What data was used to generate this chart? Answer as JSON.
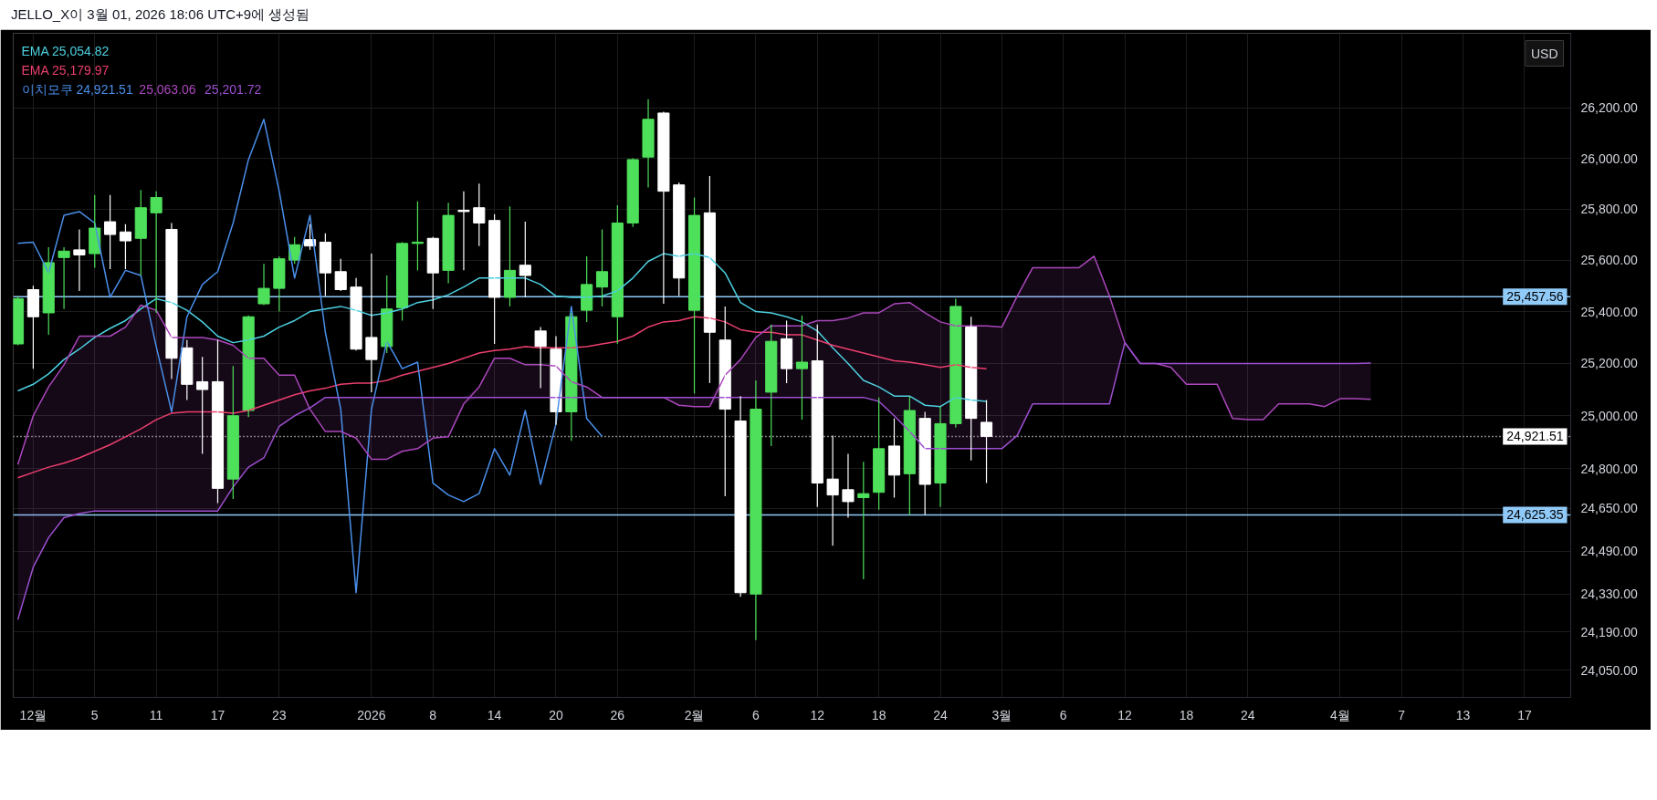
{
  "chart_data": {
    "type": "candlestick",
    "title": "JELLO_X이 3월 01, 2026 18:06 UTC+9에 생성됨",
    "ylabel": "USD",
    "log": true,
    "grid": true,
    "legend": "top left",
    "categories": [
      null,
      "12월",
      null,
      null,
      null,
      "5",
      null,
      null,
      null,
      "11",
      null,
      null,
      null,
      "17",
      null,
      null,
      null,
      "23",
      null,
      null,
      null,
      null,
      null,
      "2026",
      null,
      null,
      null,
      "8",
      null,
      null,
      null,
      "14",
      null,
      null,
      null,
      "20",
      null,
      null,
      null,
      "26",
      null,
      null,
      null,
      null,
      "2월",
      null,
      null,
      null,
      "6",
      null,
      null,
      null,
      "12",
      null,
      null,
      null,
      "18",
      null,
      null,
      null,
      "24",
      null,
      null,
      null,
      "3월",
      null,
      null,
      null,
      "6",
      null,
      null,
      null,
      "12",
      null,
      null,
      null,
      "18",
      null,
      null,
      null,
      "24",
      null,
      null,
      null,
      null,
      null,
      "4월",
      null,
      null,
      null,
      "7",
      null,
      null,
      null,
      "13",
      null,
      null,
      null,
      "17",
      null,
      null
    ],
    "ylim": [
      23950,
      26500
    ],
    "yticks": [
      {
        "value": 24050,
        "label": "24,050.00"
      },
      {
        "value": 24190,
        "label": "24,190.00"
      },
      {
        "value": 24330,
        "label": "24,330.00"
      },
      {
        "value": 24490,
        "label": "24,490.00"
      },
      {
        "value": 24650,
        "label": "24,650.00"
      },
      {
        "value": 24800,
        "label": "24,800.00"
      },
      {
        "value": 25000,
        "label": "25,000.00"
      },
      {
        "value": 25200,
        "label": "25,200.00"
      },
      {
        "value": 25400,
        "label": "25,400.00"
      },
      {
        "value": 25600,
        "label": "25,600.00"
      },
      {
        "value": 25800,
        "label": "25,800.00"
      },
      {
        "value": 26000,
        "label": "26,000.00"
      },
      {
        "value": 26200,
        "label": "26,200.00"
      }
    ],
    "ohlc": [
      [
        25275,
        25460,
        25270,
        25450
      ],
      [
        25485,
        25500,
        25180,
        25380
      ],
      [
        25395,
        25650,
        25310,
        25590
      ],
      [
        25610,
        25650,
        25410,
        25635
      ],
      [
        25640,
        25720,
        25480,
        25620
      ],
      [
        25625,
        25855,
        25570,
        25725
      ],
      [
        25750,
        25855,
        25565,
        25700
      ],
      [
        25710,
        25740,
        25565,
        25675
      ],
      [
        25685,
        25875,
        25540,
        25805
      ],
      [
        25785,
        25870,
        25395,
        25845
      ],
      [
        25720,
        25745,
        25140,
        25220
      ],
      [
        25260,
        25290,
        25060,
        25120
      ],
      [
        25130,
        25225,
        24855,
        25100
      ],
      [
        25130,
        25290,
        24670,
        24725
      ],
      [
        24760,
        25190,
        24685,
        25000
      ],
      [
        25020,
        25385,
        24995,
        25380
      ],
      [
        25430,
        25585,
        25425,
        25490
      ],
      [
        25490,
        25615,
        25400,
        25605
      ],
      [
        25600,
        25690,
        25585,
        25660
      ],
      [
        25680,
        25740,
        25640,
        25655
      ],
      [
        25670,
        25705,
        25460,
        25550
      ],
      [
        25555,
        25605,
        25480,
        25485
      ],
      [
        25495,
        25530,
        25250,
        25255
      ],
      [
        25300,
        25625,
        25090,
        25215
      ],
      [
        25265,
        25540,
        25240,
        25410
      ],
      [
        25415,
        25670,
        25365,
        25665
      ],
      [
        25665,
        25830,
        25560,
        25670
      ],
      [
        25685,
        25690,
        25410,
        25550
      ],
      [
        25560,
        25825,
        25510,
        25775
      ],
      [
        25795,
        25870,
        25560,
        25790
      ],
      [
        25805,
        25900,
        25655,
        25745
      ],
      [
        25755,
        25780,
        25275,
        25455
      ],
      [
        25455,
        25810,
        25420,
        25560
      ],
      [
        25580,
        25750,
        25455,
        25540
      ],
      [
        25325,
        25340,
        25105,
        25265
      ],
      [
        25255,
        25305,
        24965,
        25015
      ],
      [
        25015,
        25395,
        24905,
        25380
      ],
      [
        25405,
        25615,
        25360,
        25505
      ],
      [
        25495,
        25720,
        25420,
        25555
      ],
      [
        25380,
        25815,
        25275,
        25745
      ],
      [
        25745,
        26000,
        25730,
        25995
      ],
      [
        26005,
        26235,
        25885,
        26155
      ],
      [
        26180,
        26185,
        25430,
        25870
      ],
      [
        25895,
        25905,
        25460,
        25530
      ],
      [
        25405,
        25845,
        25085,
        25775
      ],
      [
        25785,
        25930,
        25125,
        25320
      ],
      [
        25290,
        25420,
        24695,
        25025
      ],
      [
        24980,
        25075,
        24320,
        24335
      ],
      [
        24330,
        25135,
        24160,
        25025
      ],
      [
        25090,
        25350,
        24885,
        25285
      ],
      [
        25295,
        25365,
        25125,
        25180
      ],
      [
        25180,
        25385,
        24985,
        25205
      ],
      [
        25210,
        25350,
        24655,
        24745
      ],
      [
        24760,
        24925,
        24510,
        24700
      ],
      [
        24720,
        24855,
        24615,
        24675
      ],
      [
        24690,
        24825,
        24385,
        24705
      ],
      [
        24710,
        25070,
        24645,
        24875
      ],
      [
        24885,
        24990,
        24690,
        24775
      ],
      [
        24780,
        25075,
        24625,
        25020
      ],
      [
        24990,
        25015,
        24625,
        24740
      ],
      [
        24745,
        25035,
        24655,
        24970
      ],
      [
        24970,
        25450,
        24955,
        25420
      ],
      [
        25340,
        25380,
        24830,
        24990
      ],
      [
        24975,
        25060,
        24745,
        24921.51
      ],
      null,
      null,
      null,
      null,
      null,
      null,
      null,
      null,
      null,
      null,
      null,
      null,
      null,
      null,
      null,
      null,
      null,
      null,
      null,
      null,
      null,
      null,
      null,
      null,
      null,
      null,
      null,
      null,
      null,
      null,
      null,
      null,
      null,
      null,
      null,
      null,
      null
    ],
    "colors": [
      "#4ee05a",
      "#ffffff",
      "#4ee05a",
      "#4ee05a",
      "#ffffff",
      "#4ee05a",
      "#ffffff",
      "#ffffff",
      "#4ee05a",
      "#4ee05a",
      "#ffffff",
      "#ffffff",
      "#ffffff",
      "#ffffff",
      "#4ee05a",
      "#4ee05a",
      "#4ee05a",
      "#4ee05a",
      "#4ee05a",
      "#ffffff",
      "#ffffff",
      "#ffffff",
      "#ffffff",
      "#ffffff",
      "#4ee05a",
      "#4ee05a",
      "#4ee05a",
      "#ffffff",
      "#4ee05a",
      "#ffffff",
      "#ffffff",
      "#ffffff",
      "#4ee05a",
      "#ffffff",
      "#ffffff",
      "#ffffff",
      "#4ee05a",
      "#4ee05a",
      "#4ee05a",
      "#4ee05a",
      "#4ee05a",
      "#4ee05a",
      "#ffffff",
      "#ffffff",
      "#4ee05a",
      "#ffffff",
      "#ffffff",
      "#ffffff",
      "#4ee05a",
      "#4ee05a",
      "#ffffff",
      "#4ee05a",
      "#ffffff",
      "#ffffff",
      "#ffffff",
      "#4ee05a",
      "#4ee05a",
      "#ffffff",
      "#4ee05a",
      "#ffffff",
      "#4ee05a",
      "#4ee05a",
      "#ffffff",
      "#ffffff",
      null,
      null,
      null,
      null,
      null,
      null,
      null,
      null,
      null,
      null,
      null,
      null,
      null,
      null,
      null,
      null,
      null,
      null,
      null,
      null,
      null,
      null,
      null,
      null,
      null,
      null,
      null,
      null,
      null,
      null,
      null,
      null,
      null,
      null,
      null,
      null,
      null
    ],
    "series": [
      {
        "type": "line",
        "name": "EMA 25,054.82",
        "color": "#4dd0e1",
        "values": [
          25095,
          25120,
          25160,
          25215,
          25255,
          25300,
          25335,
          25365,
          25410,
          25450,
          25435,
          25405,
          25360,
          25305,
          25280,
          25290,
          25305,
          25340,
          25365,
          25400,
          25410,
          25420,
          25405,
          25385,
          25395,
          25410,
          25435,
          25445,
          25465,
          25495,
          25530,
          25530,
          25530,
          25530,
          25505,
          25460,
          25455,
          25455,
          25460,
          25480,
          25530,
          25595,
          25625,
          25615,
          25625,
          25610,
          25550,
          25435,
          25400,
          25395,
          25380,
          25360,
          25325,
          25260,
          25200,
          25135,
          25110,
          25075,
          25075,
          25040,
          25035,
          25070,
          25060,
          25054.82,
          null,
          null,
          null,
          null,
          null,
          null,
          null,
          null,
          null,
          null,
          null,
          null,
          null,
          null,
          null,
          null,
          null,
          null,
          null,
          null,
          null,
          null,
          null,
          null,
          null,
          null,
          null,
          null,
          null,
          null,
          null,
          null,
          null,
          null,
          null,
          null,
          null
        ]
      },
      {
        "type": "line",
        "name": "EMA 25,179.97",
        "color": "#ec3f6e",
        "values": [
          24765,
          24785,
          24805,
          24820,
          24840,
          24865,
          24890,
          24920,
          24950,
          24985,
          25010,
          25015,
          25015,
          25015,
          25010,
          25020,
          25040,
          25060,
          25080,
          25095,
          25105,
          25120,
          25125,
          25125,
          25135,
          25155,
          25170,
          25185,
          25200,
          25220,
          25240,
          25250,
          25255,
          25265,
          25260,
          25260,
          25260,
          25265,
          25275,
          25285,
          25305,
          25340,
          25360,
          25365,
          25380,
          25375,
          25360,
          25330,
          25320,
          25320,
          25310,
          25310,
          25290,
          25270,
          25255,
          25240,
          25225,
          25210,
          25205,
          25195,
          25185,
          25195,
          25185,
          25179.97,
          null,
          null,
          null,
          null,
          null,
          null,
          null,
          null,
          null,
          null,
          null,
          null,
          null,
          null,
          null,
          null,
          null,
          null,
          null,
          null,
          null,
          null,
          null,
          null,
          null,
          null,
          null,
          null,
          null,
          null,
          null,
          null,
          null,
          null,
          null,
          null,
          null
        ]
      },
      {
        "type": "line",
        "name": "이치모쿠 24,921.51",
        "color": "#4a8fea",
        "values": [
          25665,
          25670,
          25550,
          25775,
          25790,
          25745,
          25455,
          25560,
          25540,
          25265,
          25015,
          25380,
          25505,
          25555,
          25745,
          25995,
          26155,
          25870,
          25530,
          25775,
          25320,
          25025,
          24335,
          25025,
          25285,
          25180,
          25205,
          24745,
          24700,
          24675,
          24705,
          24875,
          24775,
          25020,
          24740,
          24970,
          25420,
          24990,
          24921.51,
          null,
          null,
          null,
          null,
          null,
          null,
          null,
          null,
          null,
          null,
          null,
          null,
          null,
          null,
          null,
          null,
          null,
          null,
          null,
          null,
          null,
          null,
          null,
          null,
          null,
          null,
          null,
          null,
          null,
          null,
          null,
          null,
          null,
          null,
          null,
          null,
          null,
          null,
          null,
          null,
          null,
          null,
          null,
          null,
          null,
          null,
          null,
          null,
          null,
          null,
          null,
          null,
          null,
          null,
          null,
          null,
          null,
          null,
          null,
          null,
          null,
          null
        ]
      },
      {
        "type": "line",
        "name": "25,063.06",
        "color": "#ab47bc",
        "values": [
          24815,
          25000,
          25110,
          25195,
          25305,
          25305,
          25305,
          25340,
          25425,
          25405,
          25300,
          25300,
          25300,
          25290,
          25270,
          25220,
          25220,
          25155,
          25155,
          25025,
          24940,
          24940,
          24915,
          24835,
          24835,
          24865,
          24875,
          24915,
          24920,
          25045,
          25110,
          25220,
          25220,
          25195,
          25195,
          25190,
          25130,
          25110,
          25070,
          25070,
          25070,
          25070,
          25070,
          25040,
          25035,
          25035,
          25155,
          25215,
          25300,
          25345,
          25345,
          25345,
          25365,
          25365,
          25375,
          25395,
          25395,
          25430,
          25435,
          25395,
          25360,
          25345,
          25345,
          25345,
          25340,
          25460,
          25570,
          25570,
          25570,
          25570,
          25615,
          25460,
          25280,
          25200,
          25200,
          25185,
          25120,
          25120,
          25120,
          24990,
          24985,
          24985,
          25045,
          25045,
          25045,
          25035,
          25065,
          25065,
          25063.06,
          null,
          null,
          null,
          null,
          null,
          null,
          null,
          null,
          null,
          null,
          null,
          null
        ],
        "upper": [
          24815,
          25000,
          25110,
          25195,
          25305,
          25305,
          25305,
          25340,
          25425,
          25405,
          25300,
          25300,
          25300,
          25290,
          25270,
          25220,
          25220,
          25155,
          25155,
          25030,
          25070,
          25070,
          25070,
          25070,
          25070,
          25070,
          25070,
          25070,
          25070,
          25070,
          25110,
          25220,
          25220,
          25195,
          25195,
          25190,
          25130,
          25110,
          25070,
          25070,
          25070,
          25070,
          25070,
          25070,
          25070,
          25070,
          25155,
          25215,
          25300,
          25345,
          25345,
          25345,
          25365,
          25365,
          25375,
          25395,
          25395,
          25430,
          25435,
          25395,
          25360,
          25345,
          25345,
          25345,
          25340,
          25460,
          25570,
          25570,
          25570,
          25570,
          25615,
          25460,
          25280,
          25200,
          25200,
          25200,
          25200,
          25200,
          25200,
          25200,
          25200,
          25200,
          25200,
          25200,
          25200,
          25200,
          25200,
          25200,
          25201.72,
          null,
          null,
          null,
          null,
          null,
          null,
          null,
          null,
          null,
          null,
          null,
          null
        ],
        "lower": [
          24235,
          24430,
          24540,
          24615,
          24630,
          24640,
          24640,
          24640,
          24640,
          24640,
          24640,
          24640,
          24640,
          24640,
          24730,
          24805,
          24840,
          24960,
          25000,
          25025,
          24940,
          24940,
          24915,
          24835,
          24835,
          24865,
          24875,
          24915,
          24920,
          25045,
          25070,
          25070,
          25070,
          25070,
          25070,
          25070,
          25070,
          25070,
          25070,
          25070,
          25070,
          25070,
          25070,
          25040,
          25035,
          25035,
          25070,
          25070,
          25070,
          25070,
          25070,
          25070,
          25070,
          25070,
          25070,
          25070,
          25055,
          25000,
          24940,
          24875,
          24875,
          24875,
          24875,
          24875,
          24875,
          24925,
          25045,
          25045,
          25045,
          25045,
          25045,
          25045,
          25280,
          25200,
          25200,
          25185,
          25120,
          25120,
          25120,
          24990,
          24985,
          24985,
          25045,
          25045,
          25045,
          25035,
          25065,
          25065,
          25063.06,
          null,
          null,
          null,
          null,
          null,
          null,
          null,
          null,
          null,
          null,
          null,
          null
        ]
      },
      {
        "type": "line",
        "name": "25,201.72",
        "color": "#9c4fd0",
        "values": [
          24235,
          24430,
          24540,
          24615,
          24630,
          24640,
          24640,
          24640,
          24640,
          24640,
          24640,
          24640,
          24640,
          24640,
          24730,
          24805,
          24840,
          24960,
          25000,
          25030,
          25070,
          25070,
          25070,
          25070,
          25070,
          25070,
          25070,
          25070,
          25070,
          25070,
          25070,
          25070,
          25070,
          25070,
          25070,
          25070,
          25070,
          25070,
          25070,
          25070,
          25070,
          25070,
          25070,
          25070,
          25070,
          25070,
          25070,
          25070,
          25070,
          25070,
          25070,
          25070,
          25070,
          25070,
          25070,
          25070,
          25055,
          25000,
          24940,
          24875,
          24875,
          24875,
          24875,
          24875,
          24875,
          24925,
          25045,
          25045,
          25045,
          25045,
          25045,
          25045,
          25280,
          25200,
          25200,
          25200,
          25200,
          25200,
          25200,
          25200,
          25200,
          25200,
          25200,
          25200,
          25200,
          25200,
          25200,
          25200,
          25201.72,
          null,
          null,
          null,
          null,
          null,
          null,
          null,
          null,
          null,
          null,
          null,
          null
        ]
      }
    ],
    "ref_lines": [
      {
        "axis": "y",
        "value": 25457.56,
        "label": "25,457.56",
        "color": "#90caf9"
      },
      {
        "axis": "y",
        "value": 24625.35,
        "label": "24,625.35",
        "color": "#90caf9"
      },
      {
        "axis": "y",
        "value": 24921.51,
        "label": "24,921.51",
        "color": "#ffffff",
        "line_style": "dotted"
      }
    ]
  }
}
